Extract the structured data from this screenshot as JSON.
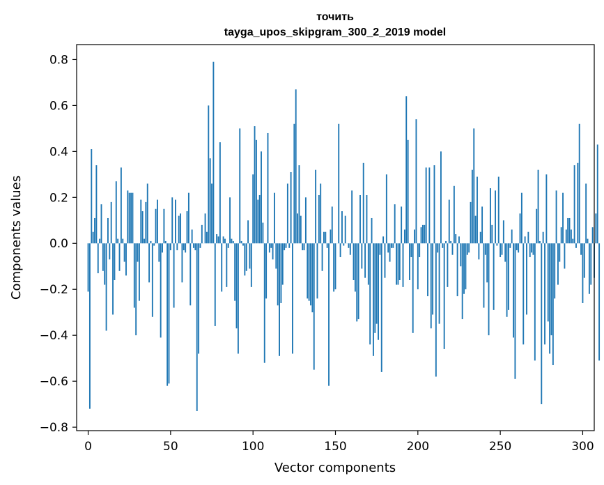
{
  "chart_data": {
    "type": "bar",
    "title": "точить",
    "subtitle": "tayga_upos_skipgram_300_2_2019 model",
    "xlabel": "Vector components",
    "ylabel": "Components values",
    "xlim": [
      -7,
      307
    ],
    "ylim": [
      -0.815,
      0.865
    ],
    "xticks": [
      0,
      50,
      100,
      150,
      200,
      250,
      300
    ],
    "xtick_labels": [
      "0",
      "50",
      "100",
      "150",
      "200",
      "250",
      "300"
    ],
    "yticks": [
      -0.8,
      -0.6,
      -0.4,
      -0.2,
      0.0,
      0.2,
      0.4,
      0.6,
      0.8
    ],
    "ytick_labels": [
      "−0.8",
      "−0.6",
      "−0.4",
      "−0.2",
      "0.0",
      "0.2",
      "0.4",
      "0.6",
      "0.8"
    ],
    "bar_color": "#1f77b4",
    "values": [
      -0.21,
      -0.72,
      0.41,
      0.05,
      0.11,
      0.34,
      -0.13,
      0.02,
      0.17,
      -0.12,
      -0.18,
      -0.38,
      0.11,
      -0.07,
      0.18,
      -0.31,
      -0.16,
      0.27,
      0.02,
      -0.12,
      0.33,
      0.02,
      -0.08,
      -0.14,
      0.23,
      0.22,
      0.22,
      0.22,
      -0.28,
      -0.4,
      -0.08,
      -0.25,
      0.19,
      0.14,
      0.02,
      0.18,
      0.26,
      -0.17,
      0.01,
      -0.32,
      -0.01,
      0.15,
      0.19,
      -0.08,
      -0.41,
      -0.04,
      0.15,
      0.01,
      -0.62,
      -0.61,
      -0.03,
      0.2,
      -0.28,
      0.19,
      -0.03,
      0.12,
      0.13,
      -0.17,
      -0.03,
      -0.04,
      0.14,
      0.22,
      -0.27,
      0.06,
      -0.02,
      -0.03,
      -0.73,
      -0.48,
      -0.02,
      0.08,
      0.0,
      0.13,
      0.05,
      0.6,
      0.37,
      0.26,
      0.79,
      -0.36,
      0.04,
      0.03,
      0.44,
      -0.21,
      0.03,
      0.02,
      -0.19,
      -0.02,
      0.2,
      0.02,
      0.01,
      -0.25,
      -0.37,
      -0.48,
      0.5,
      0.01,
      -0.01,
      -0.14,
      -0.12,
      0.1,
      -0.11,
      -0.19,
      0.3,
      0.51,
      0.45,
      0.19,
      0.21,
      0.4,
      0.09,
      -0.52,
      -0.24,
      0.48,
      -0.04,
      -0.02,
      -0.07,
      0.22,
      -0.11,
      -0.27,
      -0.49,
      -0.26,
      -0.18,
      -0.03,
      -0.02,
      0.26,
      -0.02,
      0.31,
      -0.48,
      0.52,
      0.67,
      0.13,
      0.34,
      0.12,
      -0.03,
      -0.03,
      0.2,
      -0.24,
      -0.25,
      -0.27,
      -0.3,
      -0.55,
      0.32,
      -0.24,
      0.21,
      0.26,
      -0.12,
      0.05,
      0.05,
      -0.02,
      -0.62,
      0.06,
      0.16,
      -0.21,
      -0.2,
      0.0,
      0.52,
      -0.06,
      0.14,
      -0.01,
      0.12,
      0.0,
      -0.02,
      -0.05,
      0.23,
      -0.16,
      -0.21,
      -0.34,
      -0.33,
      0.21,
      -0.11,
      0.35,
      -0.15,
      0.21,
      -0.18,
      -0.44,
      0.11,
      -0.49,
      -0.39,
      -0.35,
      -0.42,
      -0.05,
      -0.56,
      0.03,
      -0.15,
      0.3,
      -0.04,
      -0.08,
      -0.02,
      -0.02,
      0.17,
      -0.18,
      -0.18,
      -0.16,
      0.16,
      -0.19,
      0.06,
      0.64,
      0.45,
      -0.16,
      -0.06,
      -0.39,
      0.06,
      0.54,
      -0.2,
      -0.06,
      0.07,
      0.08,
      0.08,
      0.33,
      -0.23,
      0.33,
      -0.37,
      -0.31,
      0.34,
      -0.58,
      -0.04,
      -0.35,
      0.4,
      -0.02,
      -0.46,
      0.01,
      -0.19,
      0.19,
      0.01,
      -0.05,
      0.25,
      0.04,
      -0.23,
      0.03,
      -0.1,
      -0.33,
      -0.22,
      -0.2,
      -0.05,
      -0.04,
      0.18,
      0.32,
      0.5,
      0.12,
      0.29,
      -0.07,
      0.05,
      0.16,
      -0.28,
      -0.05,
      -0.17,
      -0.4,
      0.24,
      0.08,
      -0.29,
      0.23,
      -0.01,
      0.29,
      -0.06,
      -0.05,
      0.1,
      -0.08,
      -0.32,
      -0.29,
      -0.02,
      0.06,
      -0.41,
      -0.59,
      -0.03,
      -0.04,
      0.13,
      0.22,
      -0.44,
      0.03,
      -0.31,
      0.05,
      -0.06,
      -0.04,
      -0.05,
      -0.51,
      0.15,
      0.32,
      0.01,
      -0.7,
      0.05,
      -0.44,
      0.3,
      -0.34,
      -0.48,
      -0.4,
      -0.53,
      -0.24,
      0.23,
      -0.18,
      -0.08,
      0.07,
      0.22,
      -0.11,
      0.06,
      0.11,
      0.11,
      0.06,
      0.02,
      0.34,
      -0.02,
      0.35,
      0.52,
      -0.05,
      -0.26,
      -0.15,
      0.26,
      0.02,
      -0.22,
      -0.18,
      0.07,
      -0.15,
      0.13,
      0.43,
      -0.51
    ]
  }
}
